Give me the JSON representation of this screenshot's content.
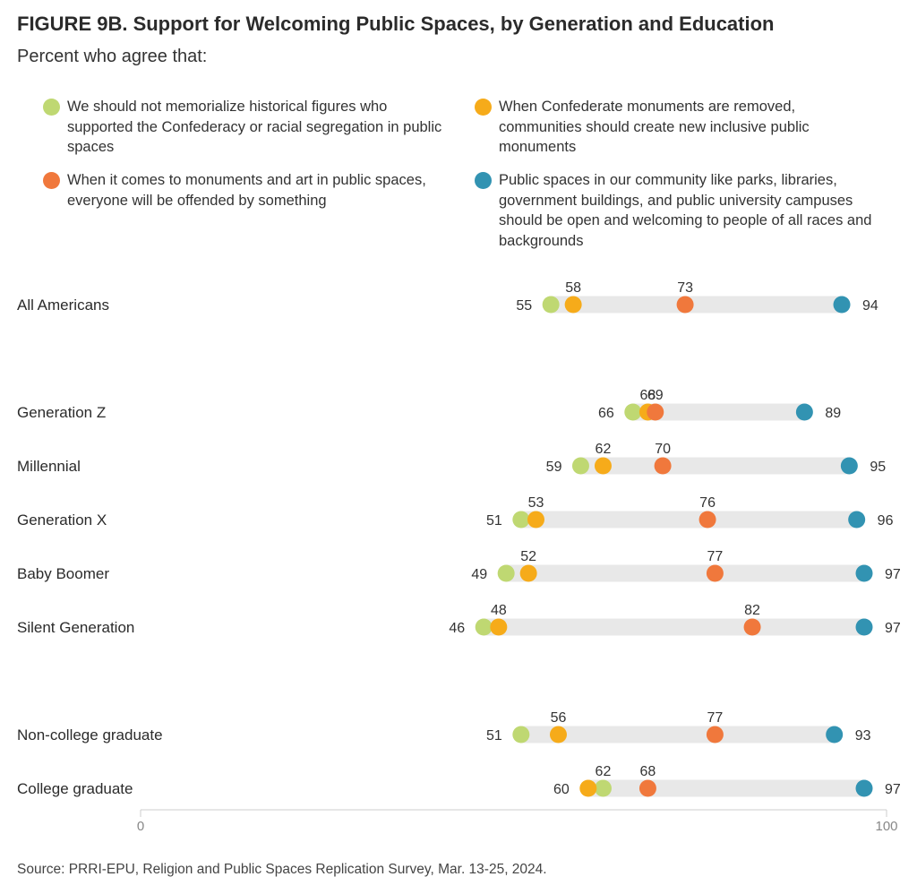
{
  "figure": {
    "title": "FIGURE 9B. Support for Welcoming Public Spaces, by Generation and Education",
    "subtitle": "Percent who agree that:",
    "source": "Source: PRRI-EPU, Religion and Public Spaces Replication Survey, Mar. 13-25, 2024."
  },
  "legend": [
    {
      "text": "We should not memorialize historical figures who supported the Confederacy or racial segregation in public spaces",
      "color": "#bfd872"
    },
    {
      "text": "When Confederate monuments are removed, communities should create new inclusive public monuments",
      "color": "#f6ab1a"
    },
    {
      "text": "When it comes to monuments and art in public spaces, everyone will be offended by something",
      "color": "#f0783c"
    },
    {
      "text": "Public spaces in our community like parks, libraries, government buildings, and public university campuses should be open and welcoming to people of all races and backgrounds",
      "color": "#3293b2"
    }
  ],
  "chart_data": {
    "type": "dot",
    "xlim": [
      0,
      100
    ],
    "x_ticks": [
      "0",
      "100"
    ],
    "categories": [
      "All Americans",
      "Generation Z",
      "Millennial",
      "Generation X",
      "Baby Boomer",
      "Silent Generation",
      "Non-college graduate",
      "College graduate"
    ],
    "series": [
      {
        "name": "We should not memorialize historical figures who supported the Confederacy or racial segregation in public spaces",
        "color": "#bfd872",
        "values": [
          55,
          66,
          59,
          51,
          49,
          46,
          51,
          62
        ]
      },
      {
        "name": "When Confederate monuments are removed, communities should create new inclusive public monuments",
        "color": "#f6ab1a",
        "values": [
          58,
          68,
          62,
          53,
          52,
          48,
          56,
          60
        ]
      },
      {
        "name": "When it comes to monuments and art in public spaces, everyone will be offended by something",
        "color": "#f0783c",
        "values": [
          73,
          69,
          70,
          76,
          77,
          82,
          77,
          68
        ]
      },
      {
        "name": "Public spaces in our community like parks, libraries, government buildings, and public university campuses should be open and welcoming to people of all races and backgrounds",
        "color": "#3293b2",
        "values": [
          94,
          89,
          95,
          96,
          97,
          97,
          93,
          97
        ]
      }
    ]
  }
}
